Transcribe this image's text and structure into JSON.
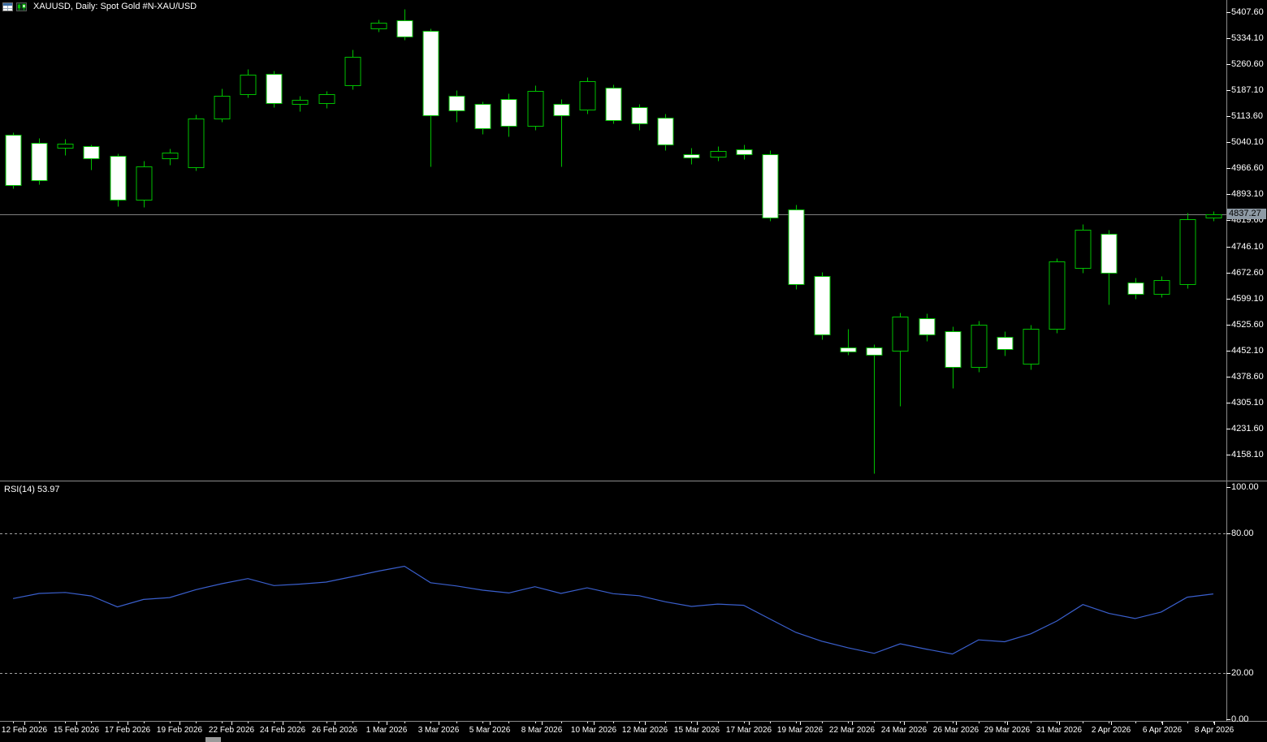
{
  "window": {
    "title": "XAUUSD, Daily:  Spot Gold #N-XAU/USD"
  },
  "icons": {
    "ohlc_table_icon": "grid-chart",
    "candlestick_chart_icon": "candlestick-chart"
  },
  "colors": {
    "background": "#000000",
    "candle_border": "#00C000",
    "bull_fill": "#000000",
    "bear_fill": "#FFFFFF",
    "rsi_line": "#3A5FCD",
    "axis_text": "#FFFFFF",
    "separator": "#8C8C8C",
    "price_line": "#808080",
    "price_marker_bg": "#8E9AA5",
    "price_marker_text": "#000000",
    "level_dash": "#A0A0A0",
    "tick": "#FFFFFF"
  },
  "chart_data": [
    {
      "type": "candlestick",
      "symbol": "XAUUSD",
      "timeframe": "Daily",
      "description": "Spot Gold #N-XAU/USD",
      "current_price": "4837.27",
      "ylim": [
        4100,
        5425
      ],
      "y_tick_labels": [
        "5407.60",
        "5334.10",
        "5260.60",
        "5187.10",
        "5113.60",
        "5040.10",
        "4966.60",
        "4893.10",
        "4819.60",
        "4746.10",
        "4672.60",
        "4599.10",
        "4525.60",
        "4452.10",
        "4378.60",
        "4305.10",
        "4231.60",
        "4158.10"
      ],
      "x_tick_labels": [
        "12 Feb 2026",
        "15 Feb 2026",
        "17 Feb 2026",
        "19 Feb 2026",
        "22 Feb 2026",
        "24 Feb 2026",
        "26 Feb 2026",
        "1 Mar 2026",
        "3 Mar 2026",
        "5 Mar 2026",
        "8 Mar 2026",
        "10 Mar 2026",
        "12 Mar 2026",
        "15 Mar 2026",
        "17 Mar 2026",
        "19 Mar 2026",
        "22 Mar 2026",
        "24 Mar 2026",
        "26 Mar 2026",
        "29 Mar 2026",
        "31 Mar 2026",
        "2 Apr 2026",
        "6 Apr 2026",
        "8 Apr 2026"
      ],
      "candle_format": "ohlc",
      "candles": [
        [
          5061.5,
          5068.2,
          4910.4,
          4918.3
        ],
        [
          5038.2,
          5052.6,
          4921.8,
          4932.5
        ],
        [
          5024.1,
          5049.3,
          5003.7,
          5035.2
        ],
        [
          5028.4,
          5034.8,
          4962.1,
          4994.6
        ],
        [
          5002.3,
          5009.5,
          4860.2,
          4878.4
        ],
        [
          4878.4,
          4988.1,
          4856.3,
          4971.9
        ],
        [
          4995.2,
          5022.4,
          4975.6,
          5011.8
        ],
        [
          4969.7,
          5117.9,
          4960.1,
          5107.6
        ],
        [
          5107.6,
          5191.7,
          5097.8,
          5172.3
        ],
        [
          5176.1,
          5246.8,
          5166.4,
          5231.9
        ],
        [
          5233.8,
          5243.2,
          5140.5,
          5150.7
        ],
        [
          5148.3,
          5172.0,
          5128.4,
          5159.8
        ],
        [
          5150.2,
          5185.4,
          5138.1,
          5176.0
        ],
        [
          5200.4,
          5301.2,
          5189.6,
          5281.7
        ],
        [
          5362.1,
          5386.4,
          5351.8,
          5377.3
        ],
        [
          5384.7,
          5417.9,
          5329.6,
          5339.9
        ],
        [
          5354.9,
          5361.5,
          4971.9,
          5116.4
        ],
        [
          5170.9,
          5187.0,
          5097.6,
          5130.1
        ],
        [
          5148.5,
          5155.2,
          5063.8,
          5079.7
        ],
        [
          5162.3,
          5178.3,
          5056.9,
          5086.6
        ],
        [
          5086.6,
          5201.2,
          5075.1,
          5185.2
        ],
        [
          5148.5,
          5162.3,
          4971.9,
          5116.4
        ],
        [
          5132.4,
          5224.3,
          5121.0,
          5212.8
        ],
        [
          5194.4,
          5203.6,
          5093.4,
          5102.6
        ],
        [
          5139.3,
          5148.5,
          5075.1,
          5093.4
        ],
        [
          5109.5,
          5121.0,
          5017.8,
          5033.8
        ],
        [
          5006.3,
          5024.7,
          4978.8,
          4997.1
        ],
        [
          4999.4,
          5029.2,
          4987.9,
          5015.5
        ],
        [
          5020.1,
          5033.8,
          4992.5,
          5006.3
        ],
        [
          5006.3,
          5017.8,
          4818.3,
          4827.5
        ],
        [
          4850.4,
          4864.2,
          4625.7,
          4639.5
        ],
        [
          4662.4,
          4673.9,
          4483.6,
          4497.4
        ],
        [
          4460.7,
          4513.4,
          4440.0,
          4449.2
        ],
        [
          4460.7,
          4469.9,
          4104.6,
          4440.0
        ],
        [
          4451.5,
          4559.2,
          4295.7,
          4547.8
        ],
        [
          4543.2,
          4556.9,
          4479.0,
          4497.4
        ],
        [
          4506.5,
          4520.3,
          4346.1,
          4405.7
        ],
        [
          4405.7,
          4536.3,
          4391.9,
          4524.9
        ],
        [
          4490.5,
          4506.5,
          4437.8,
          4456.1
        ],
        [
          4415.2,
          4524.9,
          4398.8,
          4513.4
        ],
        [
          4513.4,
          4712.8,
          4501.9,
          4703.7
        ],
        [
          4685.3,
          4808.9,
          4671.6,
          4793.1
        ],
        [
          4781.6,
          4793.1,
          4582.2,
          4671.6
        ],
        [
          4644.0,
          4657.8,
          4598.2,
          4612.0
        ],
        [
          4612.0,
          4662.4,
          4602.8,
          4650.9
        ],
        [
          4639.5,
          4841.2,
          4628.0,
          4822.9
        ],
        [
          4827.5,
          4846.0,
          4818.3,
          4837.27
        ]
      ]
    },
    {
      "type": "line",
      "name": "RSI(14)",
      "label": "RSI(14) 53.97",
      "current_value": 53.97,
      "ylim": [
        0,
        100
      ],
      "levels": [
        80,
        20
      ],
      "y_tick_labels": [
        "100.00",
        "80.00",
        "20.00",
        "0.00"
      ],
      "values": [
        52.0,
        54.2,
        54.6,
        53.1,
        48.4,
        51.6,
        52.4,
        55.8,
        58.4,
        60.6,
        57.6,
        58.2,
        59.1,
        61.4,
        63.8,
        65.9,
        58.8,
        57.4,
        55.6,
        54.4,
        57.1,
        54.2,
        56.6,
        54.1,
        53.2,
        50.6,
        48.6,
        49.6,
        49.1,
        43.2,
        37.4,
        33.6,
        30.8,
        28.4,
        32.5,
        30.2,
        28.1,
        34.2,
        33.4,
        36.8,
        42.3,
        49.4,
        45.6,
        43.4,
        46.2,
        52.6,
        53.97
      ]
    }
  ]
}
